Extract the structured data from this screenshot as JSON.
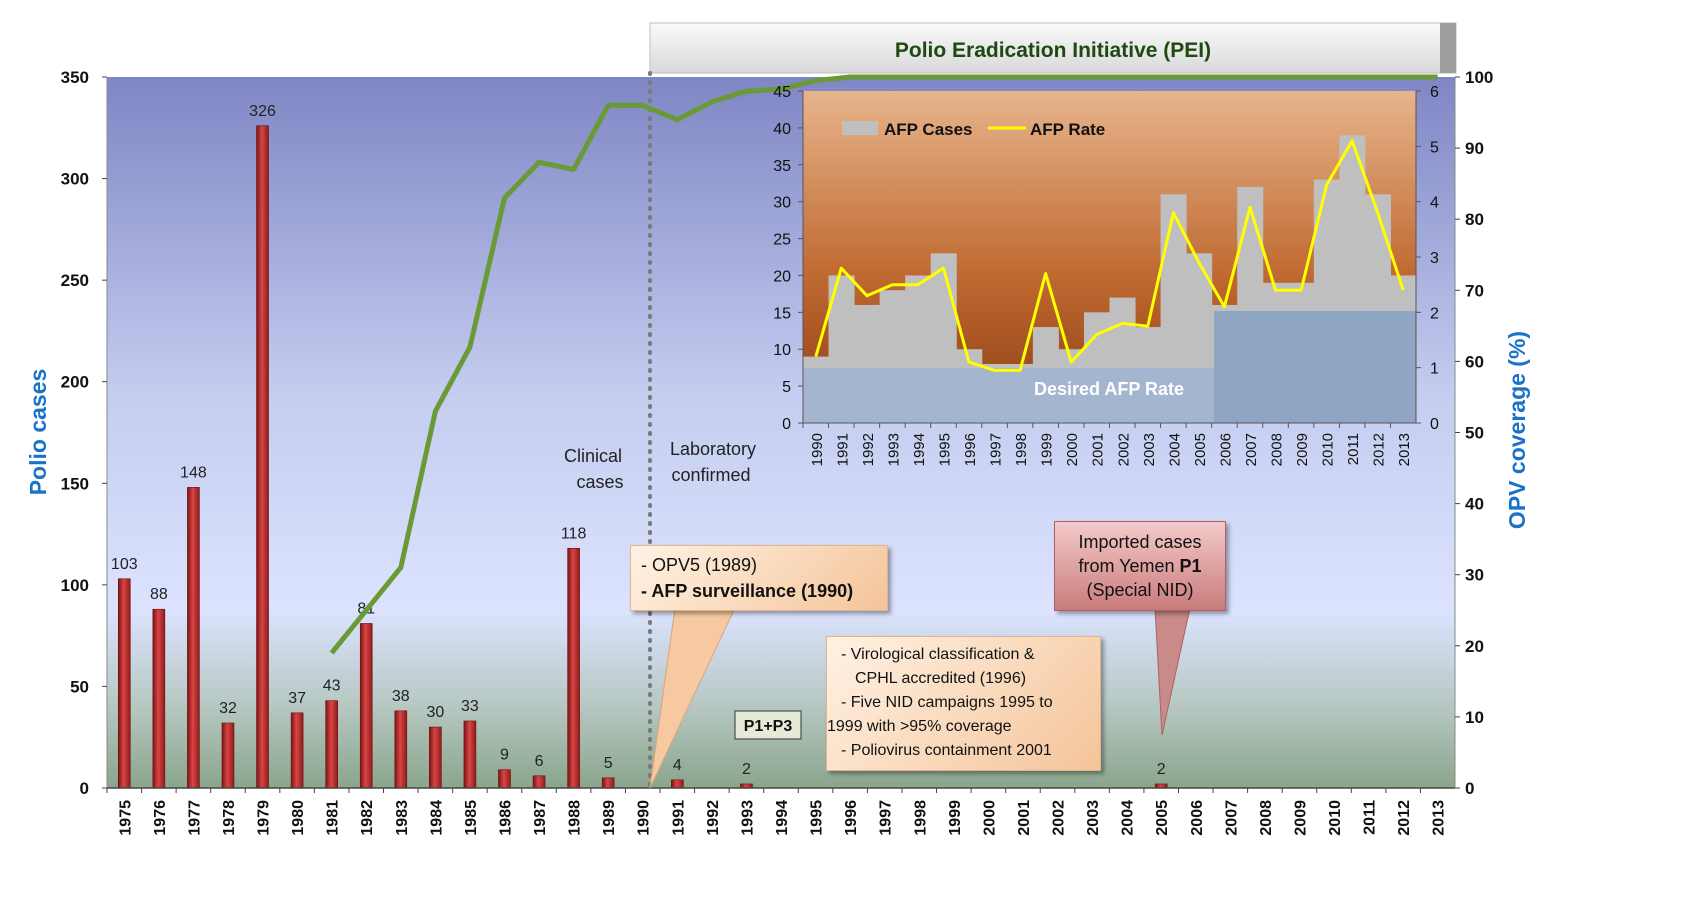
{
  "pei_banner": "Polio Eradication Initiative (PEI)",
  "labels": {
    "clinical_l1": "Clinical",
    "clinical_l2": "cases",
    "lab_l1": "Laboratory",
    "lab_l2": "confirmed",
    "p1p3": "P1+P3",
    "desired_afp": "Desired AFP Rate"
  },
  "callouts": {
    "opv5": {
      "l1": "- OPV5 (1989)",
      "l2": "- AFP surveillance (1990)"
    },
    "imported": {
      "l1": "Imported cases",
      "l2a": "from Yemen ",
      "l2b": "P1",
      "l3": "(Special NID)"
    },
    "viro": {
      "l1": "- Virological classification &",
      "l2": "CPHL accredited (1996)",
      "l3": "- Five NID campaigns 1995 to",
      "l4": "1999 with >95% coverage",
      "l5": "- Poliovirus containment 2001"
    }
  },
  "colors": {
    "bar_red": "#b02a2a",
    "opv_green": "#6a9a35",
    "afp_rate_yellow": "#ffff00",
    "afp_cases_gray": "#bfbfbf",
    "axis_title_blue": "#1a73c8"
  },
  "chart_data": [
    {
      "type": "bar",
      "id": "main",
      "categories": [
        "1975",
        "1976",
        "1977",
        "1978",
        "1979",
        "1980",
        "1981",
        "1982",
        "1983",
        "1984",
        "1985",
        "1986",
        "1987",
        "1988",
        "1989",
        "1990",
        "1991",
        "1992",
        "1993",
        "1994",
        "1995",
        "1996",
        "1997",
        "1998",
        "1999",
        "2000",
        "2001",
        "2002",
        "2003",
        "2004",
        "2005",
        "2006",
        "2007",
        "2008",
        "2009",
        "2010",
        "2011",
        "2012",
        "2013"
      ],
      "series": [
        {
          "type": "bar",
          "axis": "left",
          "values": [
            103,
            88,
            148,
            32,
            326,
            37,
            43,
            81,
            38,
            30,
            33,
            9,
            6,
            118,
            5,
            null,
            4,
            null,
            2,
            null,
            null,
            null,
            null,
            null,
            null,
            null,
            null,
            null,
            null,
            null,
            2,
            null,
            null,
            null,
            null,
            null,
            null,
            null,
            null
          ]
        },
        {
          "type": "line",
          "axis": "right",
          "values": [
            null,
            null,
            null,
            null,
            null,
            null,
            19,
            25,
            31,
            53,
            62,
            83,
            88,
            87,
            96,
            96,
            94,
            96.5,
            98,
            98.3,
            99.5,
            100,
            100,
            100,
            100,
            100,
            100,
            100,
            100,
            100,
            100,
            100,
            100,
            100,
            100,
            100,
            100,
            100,
            100
          ]
        }
      ],
      "ylabel": "Polio cases",
      "y2label": "OPV coverage (%)",
      "ylim": [
        0,
        350
      ],
      "yticks": [
        0,
        50,
        100,
        150,
        200,
        250,
        300,
        350
      ],
      "y2lim": [
        0,
        100
      ],
      "y2ticks": [
        0,
        10,
        20,
        30,
        40,
        50,
        60,
        70,
        80,
        90,
        100
      ]
    },
    {
      "type": "bar",
      "id": "inset",
      "categories": [
        "1990",
        "1991",
        "1992",
        "1993",
        "1994",
        "1995",
        "1996",
        "1997",
        "1998",
        "1999",
        "2000",
        "2001",
        "2002",
        "2003",
        "2004",
        "2005",
        "2006",
        "2007",
        "2008",
        "2009",
        "2010",
        "2011",
        "2012",
        "2013"
      ],
      "series": [
        {
          "name": "AFP Cases",
          "type": "bar",
          "axis": "left",
          "values": [
            9,
            20,
            16,
            18,
            20,
            23,
            10,
            8,
            8,
            13,
            10,
            15,
            17,
            13,
            31,
            23,
            16,
            32,
            19,
            19,
            33,
            39,
            31,
            20
          ]
        },
        {
          "name": "AFP Rate",
          "type": "line",
          "axis": "right",
          "values": [
            1.2,
            2.8,
            2.3,
            2.5,
            2.5,
            2.8,
            1.1,
            0.95,
            0.95,
            2.7,
            1.1,
            1.6,
            1.8,
            1.75,
            3.8,
            2.9,
            2.1,
            3.9,
            2.4,
            2.4,
            4.3,
            5.1,
            3.8,
            2.4
          ]
        }
      ],
      "ylim": [
        0,
        45
      ],
      "yticks": [
        0,
        5,
        10,
        15,
        20,
        25,
        30,
        35,
        40,
        45
      ],
      "y2lim": [
        0,
        6
      ],
      "y2ticks": [
        0,
        1,
        2,
        3,
        4,
        5,
        6
      ],
      "legend": "top-left"
    }
  ]
}
